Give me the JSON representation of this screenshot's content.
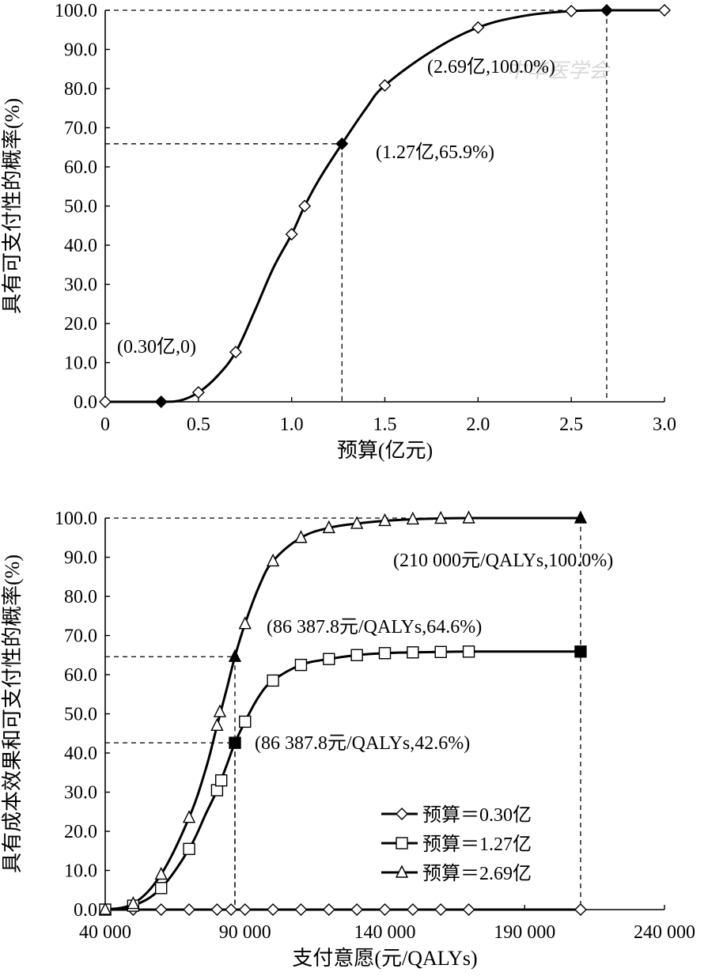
{
  "watermark": "中华医学会",
  "chart_data": [
    {
      "type": "line",
      "title": "",
      "xlabel": "预算(亿元)",
      "ylabel": "具有可支付性的概率(%)",
      "xlim": [
        0,
        3.0
      ],
      "ylim": [
        0,
        100
      ],
      "x_ticks": [
        0,
        0.5,
        1.0,
        1.5,
        2.0,
        2.5,
        3.0
      ],
      "x_tick_labels": [
        "0",
        "0.5",
        "1.0",
        "1.5",
        "2.0",
        "2.5",
        "3.0"
      ],
      "y_ticks": [
        0,
        10,
        20,
        30,
        40,
        50,
        60,
        70,
        80,
        90,
        100
      ],
      "y_tick_labels": [
        "0.0",
        "10.0",
        "20.0",
        "30.0",
        "40.0",
        "50.0",
        "60.0",
        "70.0",
        "80.0",
        "90.0",
        "100.0"
      ],
      "grid": false,
      "series": [
        {
          "marker": "diamond-open",
          "x": [
            0,
            0.5,
            0.7,
            1.0,
            1.07,
            1.5,
            2.0,
            2.5,
            3.0
          ],
          "y": [
            0,
            2.4,
            12.7,
            42.8,
            50.0,
            80.8,
            95.6,
            99.8,
            100.0
          ]
        }
      ],
      "curve": {
        "x": [
          0,
          0.3,
          0.4,
          0.5,
          0.6,
          0.7,
          0.8,
          0.9,
          1.0,
          1.07,
          1.15,
          1.27,
          1.4,
          1.5,
          1.75,
          2.0,
          2.25,
          2.5,
          2.69,
          3.0
        ],
        "y": [
          0,
          0,
          0.3,
          2.4,
          6.5,
          12.7,
          23,
          34,
          42.8,
          50.0,
          57,
          65.9,
          75,
          80.8,
          89.5,
          95.6,
          98.6,
          99.8,
          100.0,
          100.0
        ]
      },
      "highlight_points": [
        {
          "x": 0.3,
          "y": 0,
          "label": "(0.30亿,0)"
        },
        {
          "x": 1.27,
          "y": 65.9,
          "label": "(1.27亿,65.9%)"
        },
        {
          "x": 2.69,
          "y": 100.0,
          "label": "(2.69亿,100.0%)"
        }
      ]
    },
    {
      "type": "line",
      "title": "",
      "xlabel": "支付意愿(元/QALYs)",
      "ylabel": "具有成本效果和可支付性的概率(%)",
      "xlim": [
        40000,
        240000
      ],
      "ylim": [
        0,
        100
      ],
      "x_ticks": [
        40000,
        90000,
        140000,
        190000,
        240000
      ],
      "x_tick_labels": [
        "40 000",
        "90 000",
        "140 000",
        "190 000",
        "240 000"
      ],
      "y_ticks": [
        0,
        10,
        20,
        30,
        40,
        50,
        60,
        70,
        80,
        90,
        100
      ],
      "y_tick_labels": [
        "0.0",
        "10.0",
        "20.0",
        "30.0",
        "40.0",
        "50.0",
        "60.0",
        "70.0",
        "80.0",
        "90.0",
        "100.0"
      ],
      "grid": false,
      "legend_position": "bottom-right",
      "series": [
        {
          "name": "预算＝0.30亿",
          "marker": "diamond-open",
          "x": [
            40000,
            50000,
            60000,
            70000,
            80000,
            85000,
            90000,
            100000,
            110000,
            120000,
            130000,
            140000,
            150000,
            160000,
            170000,
            210000
          ],
          "y": [
            0,
            0,
            0,
            0,
            0,
            0,
            0,
            0,
            0,
            0,
            0,
            0,
            0,
            0,
            0,
            0
          ]
        },
        {
          "name": "预算＝1.27亿",
          "marker": "square-open",
          "x": [
            40000,
            50000,
            60000,
            70000,
            80000,
            81500,
            86387.8,
            90000,
            100000,
            110000,
            120000,
            130000,
            140000,
            150000,
            160000,
            170000,
            210000
          ],
          "y": [
            0,
            1.0,
            5.5,
            15.5,
            30.5,
            33.0,
            42.6,
            48.0,
            58.5,
            62.5,
            64.0,
            65.0,
            65.5,
            65.7,
            65.8,
            65.9,
            65.9
          ],
          "curve_x": [
            40000,
            50000,
            60000,
            70000,
            76000,
            80000,
            83500,
            86387.8,
            90000,
            95000,
            100000,
            110000,
            120000,
            130000,
            140000,
            150000,
            160000,
            170000,
            210000
          ],
          "curve_y": [
            0,
            1.0,
            5.5,
            15.5,
            24.5,
            30.5,
            37.0,
            42.6,
            48.0,
            54.5,
            58.5,
            62.5,
            64.0,
            65.0,
            65.5,
            65.7,
            65.8,
            65.9,
            65.9
          ]
        },
        {
          "name": "预算＝2.69亿",
          "marker": "triangle-open",
          "x": [
            40000,
            50000,
            60000,
            70000,
            80000,
            81000,
            86387.8,
            90000,
            100000,
            110000,
            120000,
            130000,
            140000,
            150000,
            160000,
            170000,
            210000
          ],
          "y": [
            0,
            1.5,
            9.0,
            23.5,
            47.0,
            50.5,
            64.6,
            73.0,
            89.0,
            95.0,
            97.5,
            98.6,
            99.3,
            99.7,
            99.9,
            100.0,
            100.0
          ],
          "curve_x": [
            40000,
            50000,
            60000,
            70000,
            76000,
            80000,
            83500,
            86387.8,
            90000,
            95000,
            100000,
            110000,
            120000,
            130000,
            140000,
            150000,
            160000,
            170000,
            210000
          ],
          "curve_y": [
            0,
            1.5,
            9.0,
            23.5,
            36.0,
            47.0,
            56.5,
            64.6,
            73.0,
            82.5,
            89.0,
            95.0,
            97.5,
            98.6,
            99.3,
            99.7,
            99.9,
            100.0,
            100.0
          ]
        }
      ],
      "highlight_points": [
        {
          "series": 1,
          "x": 86387.8,
          "y": 42.6,
          "marker": "square-filled",
          "label": "(86 387.8元/QALYs,42.6%)"
        },
        {
          "series": 2,
          "x": 86387.8,
          "y": 64.6,
          "marker": "triangle-filled",
          "label": "(86 387.8元/QALYs,64.6%)"
        },
        {
          "series": 2,
          "x": 210000,
          "y": 100.0,
          "marker": "triangle-filled",
          "label": "(210 000元/QALYs,100.0%)"
        },
        {
          "series": 1,
          "x": 210000,
          "y": 65.9,
          "marker": "square-filled",
          "label": ""
        }
      ]
    }
  ]
}
